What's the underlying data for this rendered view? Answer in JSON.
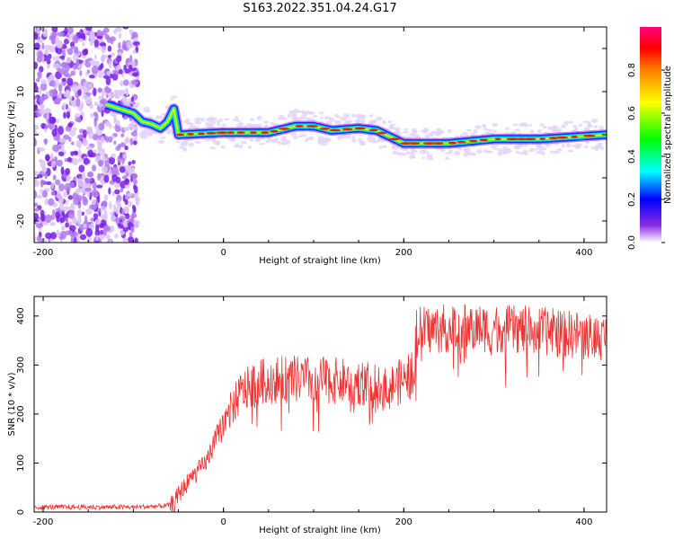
{
  "title": "S163.2022.351.04.24.G17",
  "chart_data": [
    {
      "type": "heatmap",
      "xlabel": "Height of straight line (km)",
      "ylabel": "Frequency (Hz)",
      "xlim": [
        -210,
        425
      ],
      "ylim": [
        -25,
        25
      ],
      "xticks": [
        "-200",
        "0",
        "200",
        "400"
      ],
      "yticks": [
        "-20",
        "-10",
        "0",
        "10",
        "20"
      ],
      "colorbar": {
        "label": "Normalized spectral amplitude",
        "range": [
          0,
          1
        ],
        "ticks": [
          "0.0",
          "0.2",
          "0.4",
          "0.6",
          "0.8"
        ]
      },
      "ridge": {
        "x": [
          -130,
          -115,
          -100,
          -90,
          -80,
          -70,
          -62,
          -55,
          -50,
          0,
          50,
          80,
          100,
          120,
          150,
          170,
          180,
          200,
          250,
          300,
          350,
          425
        ],
        "y": [
          7,
          6,
          5,
          3,
          2.5,
          1.5,
          3,
          6,
          0,
          0.5,
          0.5,
          2,
          2,
          1,
          1.5,
          1,
          0,
          -2,
          -2,
          -1,
          -1,
          0
        ]
      },
      "noise_region_x": [
        -210,
        -95
      ]
    },
    {
      "type": "line",
      "xlabel": "Height of straight line (km)",
      "ylabel": "SNR (10 * v/v)",
      "xlim": [
        -210,
        425
      ],
      "ylim": [
        0,
        440
      ],
      "xticks": [
        "-200",
        "0",
        "200",
        "400"
      ],
      "yticks": [
        "0",
        "100",
        "200",
        "300",
        "400"
      ],
      "color": "#ee3333",
      "x": [
        -210,
        -100,
        -70,
        -55,
        -50,
        -40,
        -20,
        -10,
        0,
        10,
        20,
        40,
        60,
        100,
        150,
        180,
        200,
        210,
        215,
        250,
        300,
        350,
        400,
        425
      ],
      "y": [
        10,
        10,
        12,
        15,
        35,
        60,
        100,
        140,
        180,
        215,
        245,
        265,
        270,
        270,
        265,
        250,
        270,
        280,
        370,
        375,
        375,
        370,
        360,
        355
      ]
    }
  ]
}
